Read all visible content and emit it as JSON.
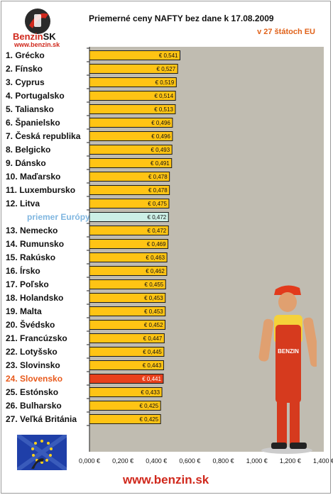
{
  "header": {
    "logo_brand": "Benzin",
    "logo_brand_suffix": "SK",
    "logo_url": "www.benzin.sk",
    "footer_url": "www.benzin.sk"
  },
  "colors": {
    "bar": "#ffc414",
    "bar_border": "#1a1a1a",
    "highlight_bar": "#e8401c",
    "average_bar": "#ccefe6",
    "highlight_text": "#e85a1c",
    "average_text": "#7fb6e0",
    "plot_bg": "#c0bcb1"
  },
  "chart_data": {
    "type": "bar",
    "orientation": "horizontal",
    "title": "Priemerné ceny NAFTY bez dane k 17.08.2009",
    "subtitle": "v 27 štátoch EU",
    "categories": [
      "1. Grécko",
      "2. Fínsko",
      "3. Cyprus",
      "4. Portugalsko",
      "5. Taliansko",
      "6. Španielsko",
      "7. Česká republika",
      "8. Belgicko",
      "9. Dánsko",
      "10. Maďarsko",
      "11. Luxembursko",
      "12. Litva",
      "priemer Európy",
      "13. Nemecko",
      "14. Rumunsko",
      "15. Rakúsko",
      "16. Írsko",
      "17. Poľsko",
      "18. Holandsko",
      "19. Malta",
      "20. Švédsko",
      "21. Francúzsko",
      "22. Lotyšsko",
      "23. Slovinsko",
      "24. Slovensko",
      "25. Estónsko",
      "26. Bulharsko",
      "27. Veľká Británia"
    ],
    "values": [
      0.541,
      0.527,
      0.519,
      0.514,
      0.513,
      0.496,
      0.496,
      0.493,
      0.491,
      0.478,
      0.478,
      0.475,
      0.472,
      0.472,
      0.469,
      0.463,
      0.462,
      0.455,
      0.453,
      0.453,
      0.452,
      0.447,
      0.445,
      0.443,
      0.441,
      0.433,
      0.425,
      0.425
    ],
    "value_labels": [
      "€ 0,541",
      "€ 0,527",
      "€ 0,519",
      "€ 0,514",
      "€ 0,513",
      "€ 0,496",
      "€ 0,496",
      "€ 0,493",
      "€ 0,491",
      "€ 0,478",
      "€ 0,478",
      "€ 0,475",
      "€ 0,472",
      "€ 0,472",
      "€ 0,469",
      "€ 0,463",
      "€ 0,462",
      "€ 0,455",
      "€ 0,453",
      "€ 0,453",
      "€ 0,452",
      "€ 0,447",
      "€ 0,445",
      "€ 0,443",
      "€ 0,441",
      "€ 0,433",
      "€ 0,425",
      "€ 0,425"
    ],
    "highlight_index": 24,
    "average_index": 12,
    "xlim": [
      0,
      1.4
    ],
    "x_ticks": [
      0,
      0.2,
      0.4,
      0.6,
      0.8,
      1.0,
      1.2,
      1.4
    ],
    "x_tick_labels": [
      "0,000 €",
      "0,200 €",
      "0,400 €",
      "0,600 €",
      "0,800 €",
      "1,000 €",
      "1,200 €",
      "1,400 €"
    ],
    "grid": false,
    "legend": "none"
  }
}
